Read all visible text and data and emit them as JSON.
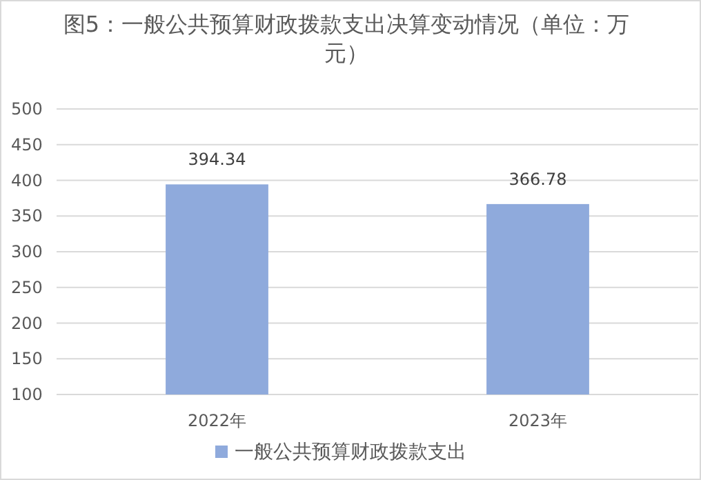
{
  "chart_data": {
    "type": "bar",
    "title": "图5：一般公共预算财政拨款支出决算变动情况（单位：万元）",
    "categories": [
      "2022年",
      "2023年"
    ],
    "series": [
      {
        "name": "一般公共预算财政拨款支出",
        "color": "#8faadc",
        "values": [
          394.34,
          366.78
        ]
      }
    ],
    "ylim": [
      100,
      500
    ],
    "yticks": [
      100,
      150,
      200,
      250,
      300,
      350,
      400,
      450,
      500
    ],
    "grid": "y",
    "legend": "bottom",
    "data_labels": true
  }
}
